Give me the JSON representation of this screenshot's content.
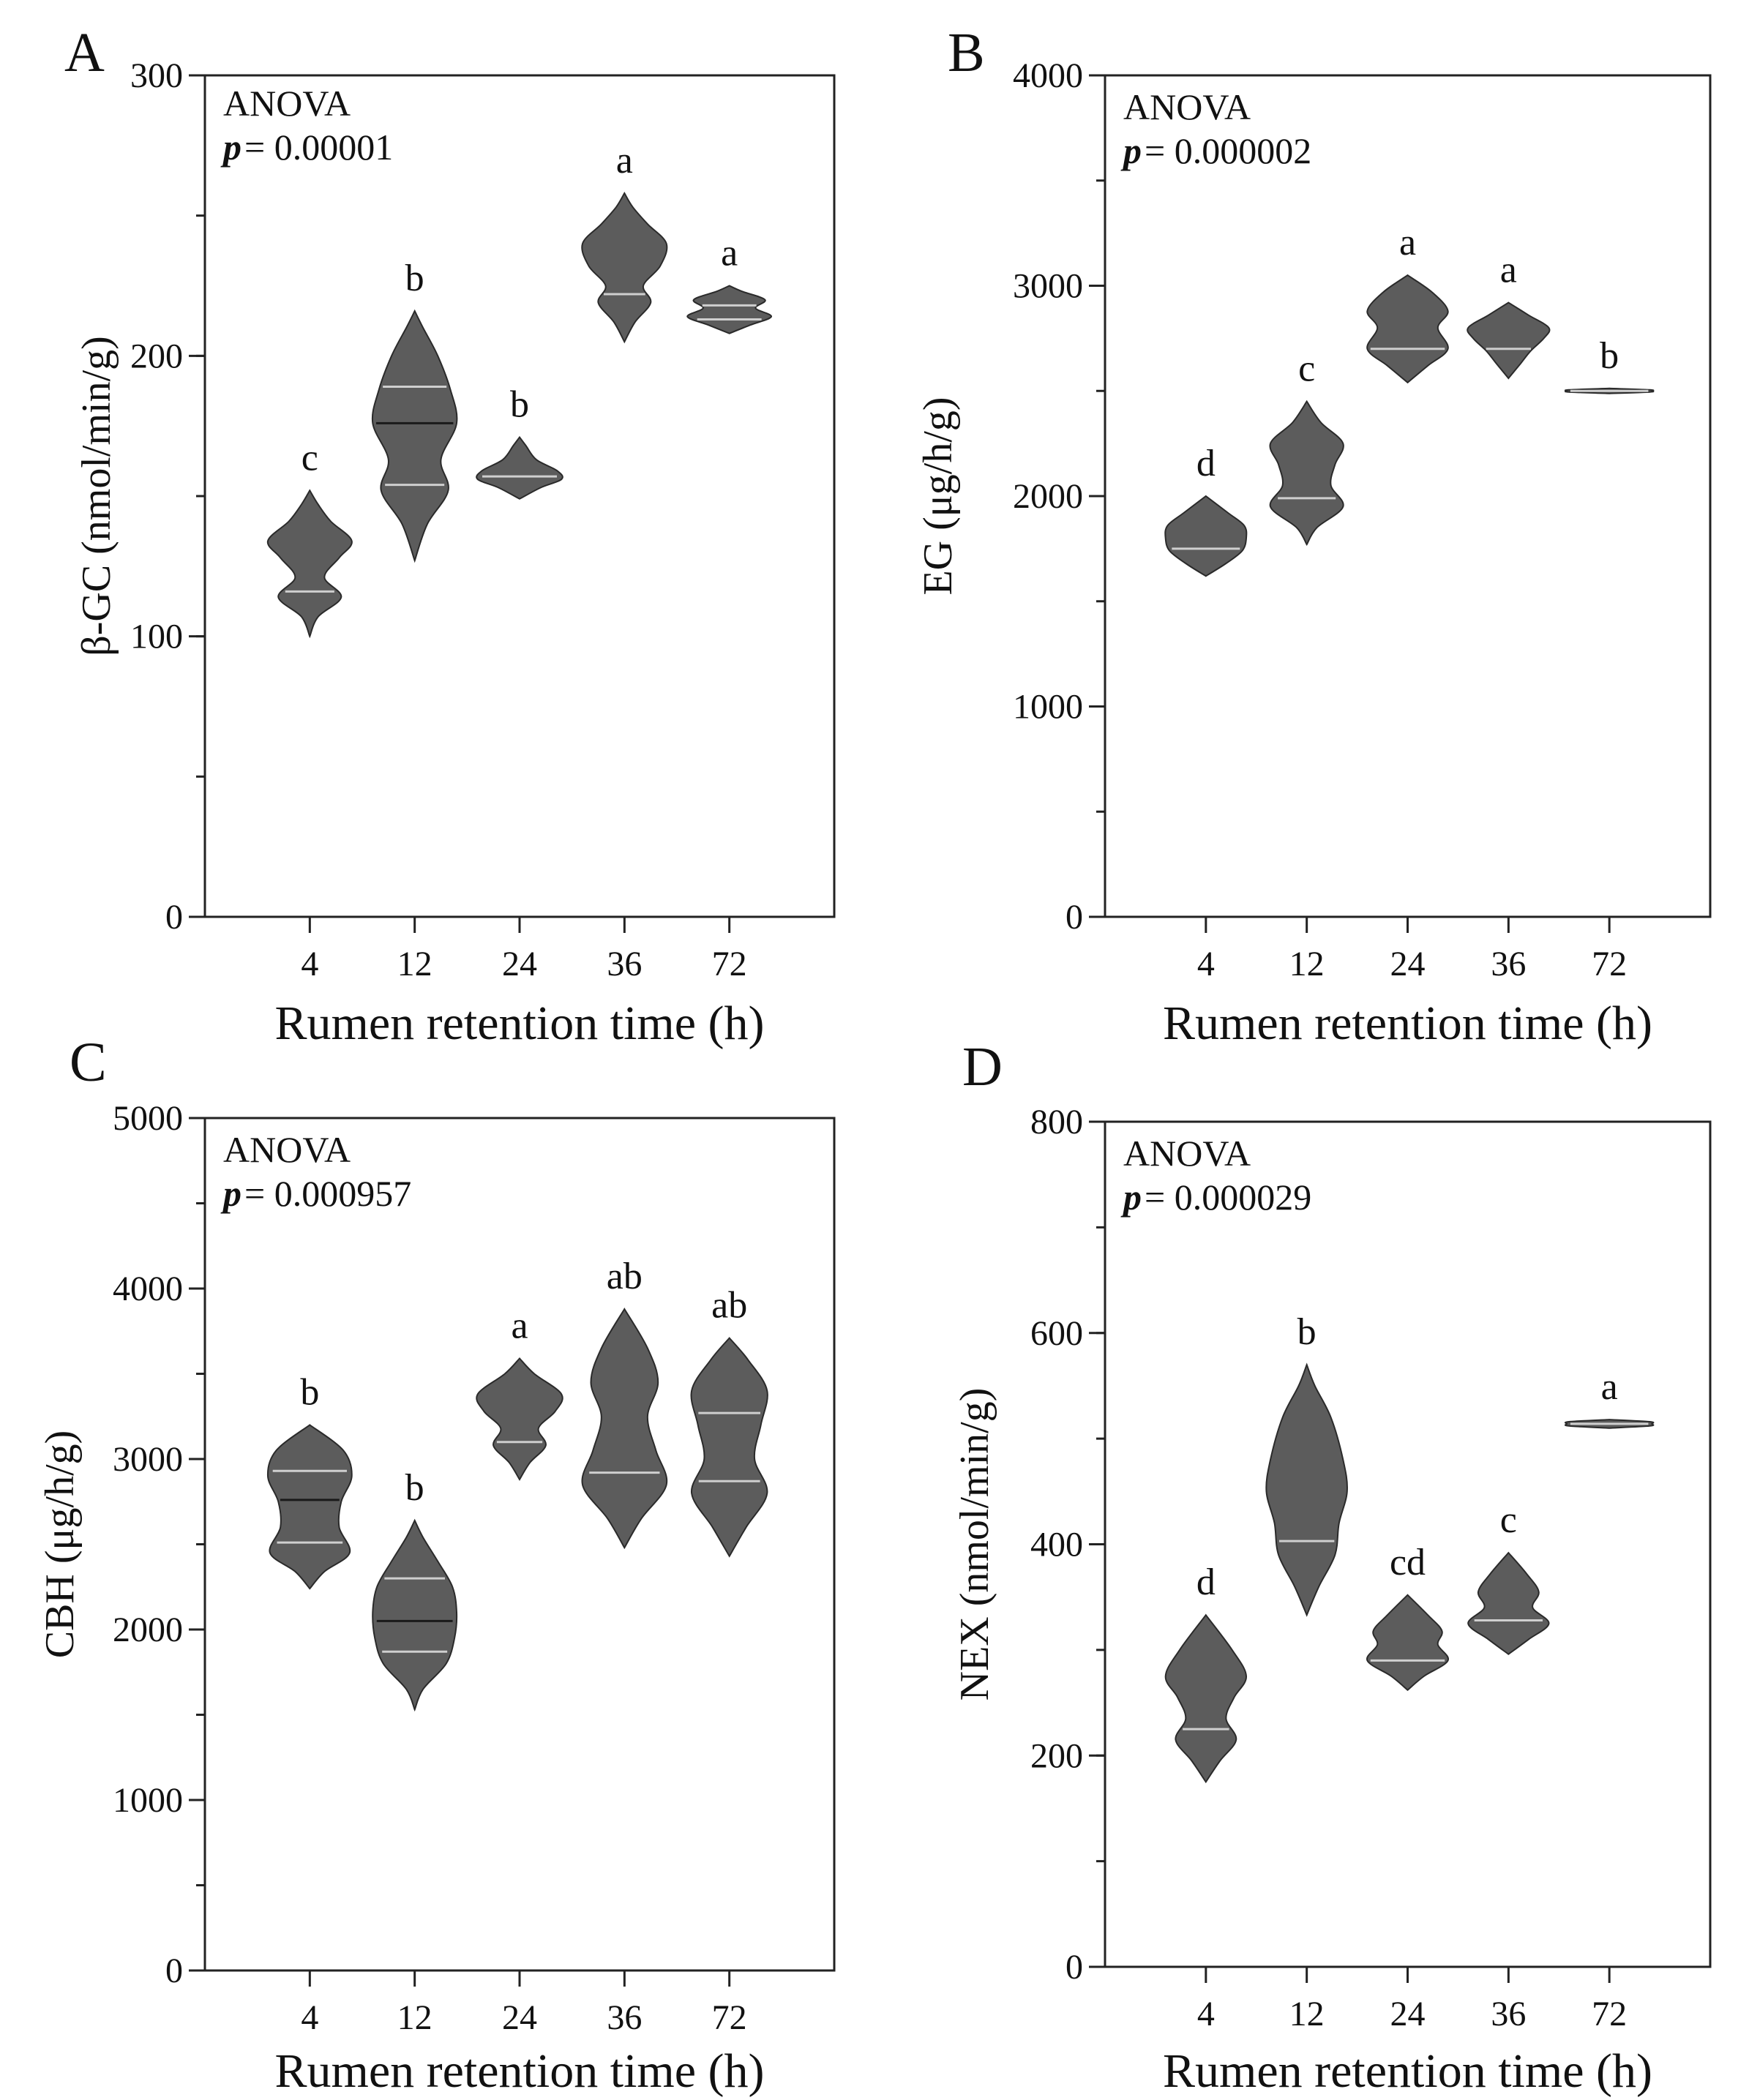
{
  "chart_data": [
    {
      "panel": "A",
      "type": "violin",
      "test": "ANOVA",
      "p_symbol": "p",
      "p_value": "= 0.00001",
      "categories": [
        "4",
        "12",
        "24",
        "36",
        "72"
      ],
      "xlabel": "Rumen retention time (h)",
      "ylabel": "β-GC (nmol/min/g)",
      "ylim": [
        0,
        300
      ],
      "yticks": [
        "0",
        "100",
        "200",
        "300"
      ],
      "yminor_step": 50,
      "fill_color": "#5c5c5c",
      "groups": [
        {
          "x": "4",
          "min": 100,
          "max": 152,
          "shape": [
            [
              100,
              0
            ],
            [
              107,
              0.08
            ],
            [
              114,
              0.3
            ],
            [
              121,
              0.14
            ],
            [
              128,
              0.28
            ],
            [
              134,
              0.4
            ],
            [
              141,
              0.2
            ],
            [
              147,
              0.08
            ],
            [
              152,
              0
            ]
          ],
          "lines": [
            {
              "y": 116,
              "color": "#cfcfcf"
            }
          ],
          "sig": "c"
        },
        {
          "x": "12",
          "min": 127,
          "max": 216,
          "shape": [
            [
              127,
              0
            ],
            [
              140,
              0.12
            ],
            [
              152,
              0.32
            ],
            [
              163,
              0.25
            ],
            [
              176,
              0.4
            ],
            [
              188,
              0.34
            ],
            [
              200,
              0.22
            ],
            [
              210,
              0.08
            ],
            [
              216,
              0
            ]
          ],
          "lines": [
            {
              "y": 154,
              "color": "#cfcfcf"
            },
            {
              "y": 176,
              "color": "#1a1a1a"
            },
            {
              "y": 189,
              "color": "#cfcfcf"
            }
          ],
          "sig": "b"
        },
        {
          "x": "24",
          "min": 149,
          "max": 171,
          "shape": [
            [
              149,
              0
            ],
            [
              153,
              0.2
            ],
            [
              156,
              0.4
            ],
            [
              159,
              0.36
            ],
            [
              163,
              0.16
            ],
            [
              168,
              0.06
            ],
            [
              171,
              0
            ]
          ],
          "lines": [
            {
              "y": 157,
              "color": "#cfcfcf"
            }
          ],
          "sig": "b"
        },
        {
          "x": "36",
          "min": 205,
          "max": 258,
          "shape": [
            [
              205,
              0
            ],
            [
              212,
              0.1
            ],
            [
              219,
              0.25
            ],
            [
              225,
              0.18
            ],
            [
              232,
              0.34
            ],
            [
              240,
              0.4
            ],
            [
              247,
              0.22
            ],
            [
              253,
              0.08
            ],
            [
              258,
              0
            ]
          ],
          "lines": [
            {
              "y": 222,
              "color": "#cfcfcf"
            }
          ],
          "sig": "a"
        },
        {
          "x": "72",
          "min": 208,
          "max": 225,
          "shape": [
            [
              208,
              0
            ],
            [
              211,
              0.2
            ],
            [
              214,
              0.4
            ],
            [
              217,
              0.25
            ],
            [
              220,
              0.34
            ],
            [
              223,
              0.12
            ],
            [
              225,
              0
            ]
          ],
          "lines": [
            {
              "y": 213,
              "color": "#cfcfcf"
            },
            {
              "y": 218,
              "color": "#cfcfcf"
            }
          ],
          "sig": "a"
        }
      ]
    },
    {
      "panel": "B",
      "type": "violin",
      "test": "ANOVA",
      "p_symbol": "p",
      "p_value": "= 0.000002",
      "categories": [
        "4",
        "12",
        "24",
        "36",
        "72"
      ],
      "xlabel": "Rumen retention time (h)",
      "ylabel": "EG (μg/h/g)",
      "ylim": [
        0,
        4000
      ],
      "yticks": [
        "0",
        "1000",
        "2000",
        "3000",
        "4000"
      ],
      "yminor_step": 500,
      "fill_color": "#5c5c5c",
      "groups": [
        {
          "x": "4",
          "min": 1620,
          "max": 2000,
          "shape": [
            [
              1620,
              0
            ],
            [
              1680,
              0.2
            ],
            [
              1740,
              0.36
            ],
            [
              1800,
              0.4
            ],
            [
              1860,
              0.38
            ],
            [
              1920,
              0.22
            ],
            [
              2000,
              0
            ]
          ],
          "lines": [
            {
              "y": 1750,
              "color": "#cfcfcf"
            }
          ],
          "sig": "d"
        },
        {
          "x": "12",
          "min": 1770,
          "max": 2450,
          "shape": [
            [
              1770,
              0
            ],
            [
              1850,
              0.1
            ],
            [
              1950,
              0.36
            ],
            [
              2050,
              0.24
            ],
            [
              2150,
              0.28
            ],
            [
              2250,
              0.36
            ],
            [
              2350,
              0.14
            ],
            [
              2450,
              0
            ]
          ],
          "lines": [
            {
              "y": 1990,
              "color": "#cfcfcf"
            }
          ],
          "sig": "c"
        },
        {
          "x": "24",
          "min": 2540,
          "max": 3050,
          "shape": [
            [
              2540,
              0
            ],
            [
              2620,
              0.2
            ],
            [
              2700,
              0.4
            ],
            [
              2800,
              0.3
            ],
            [
              2880,
              0.4
            ],
            [
              2970,
              0.24
            ],
            [
              3050,
              0
            ]
          ],
          "lines": [
            {
              "y": 2700,
              "color": "#cfcfcf"
            }
          ],
          "sig": "a"
        },
        {
          "x": "36",
          "min": 2560,
          "max": 2920,
          "shape": [
            [
              2560,
              0
            ],
            [
              2630,
              0.12
            ],
            [
              2690,
              0.22
            ],
            [
              2750,
              0.35
            ],
            [
              2800,
              0.4
            ],
            [
              2860,
              0.2
            ],
            [
              2920,
              0
            ]
          ],
          "lines": [
            {
              "y": 2700,
              "color": "#cfcfcf"
            }
          ],
          "sig": "a"
        },
        {
          "x": "72",
          "min": 2488,
          "max": 2512,
          "shape": [
            [
              2488,
              0
            ],
            [
              2495,
              0.4
            ],
            [
              2500,
              0.42
            ],
            [
              2505,
              0.4
            ],
            [
              2512,
              0
            ]
          ],
          "lines": [
            {
              "y": 2500,
              "color": "#cfcfcf"
            }
          ],
          "sig": "b"
        }
      ]
    },
    {
      "panel": "C",
      "type": "violin",
      "test": "ANOVA",
      "p_symbol": "p",
      "p_value": "= 0.000957",
      "categories": [
        "4",
        "12",
        "24",
        "36",
        "72"
      ],
      "xlabel": "Rumen retention time (h)",
      "ylabel": "CBH (μg/h/g)",
      "ylim": [
        0,
        5000
      ],
      "yticks": [
        "0",
        "1000",
        "2000",
        "3000",
        "4000",
        "5000"
      ],
      "yminor_step": 500,
      "fill_color": "#5c5c5c",
      "groups": [
        {
          "x": "4",
          "min": 2240,
          "max": 3200,
          "shape": [
            [
              2240,
              0
            ],
            [
              2340,
              0.14
            ],
            [
              2450,
              0.38
            ],
            [
              2600,
              0.28
            ],
            [
              2750,
              0.3
            ],
            [
              2900,
              0.4
            ],
            [
              3050,
              0.32
            ],
            [
              3200,
              0
            ]
          ],
          "lines": [
            {
              "y": 2510,
              "color": "#cfcfcf"
            },
            {
              "y": 2760,
              "color": "#1a1a1a"
            },
            {
              "y": 2930,
              "color": "#cfcfcf"
            }
          ],
          "sig": "b"
        },
        {
          "x": "12",
          "min": 1530,
          "max": 2640,
          "shape": [
            [
              1530,
              0
            ],
            [
              1650,
              0.08
            ],
            [
              1800,
              0.3
            ],
            [
              1950,
              0.38
            ],
            [
              2100,
              0.4
            ],
            [
              2250,
              0.36
            ],
            [
              2400,
              0.22
            ],
            [
              2540,
              0.08
            ],
            [
              2640,
              0
            ]
          ],
          "lines": [
            {
              "y": 1870,
              "color": "#cfcfcf"
            },
            {
              "y": 2050,
              "color": "#1a1a1a"
            },
            {
              "y": 2300,
              "color": "#cfcfcf"
            }
          ],
          "sig": "b"
        },
        {
          "x": "24",
          "min": 2880,
          "max": 3590,
          "shape": [
            [
              2880,
              0
            ],
            [
              2980,
              0.1
            ],
            [
              3080,
              0.25
            ],
            [
              3180,
              0.18
            ],
            [
              3280,
              0.34
            ],
            [
              3380,
              0.4
            ],
            [
              3500,
              0.14
            ],
            [
              3590,
              0
            ]
          ],
          "lines": [
            {
              "y": 3100,
              "color": "#cfcfcf"
            }
          ],
          "sig": "a"
        },
        {
          "x": "36",
          "min": 2480,
          "max": 3880,
          "shape": [
            [
              2480,
              0
            ],
            [
              2650,
              0.16
            ],
            [
              2850,
              0.4
            ],
            [
              3050,
              0.3
            ],
            [
              3250,
              0.22
            ],
            [
              3450,
              0.32
            ],
            [
              3650,
              0.22
            ],
            [
              3880,
              0
            ]
          ],
          "lines": [
            {
              "y": 2920,
              "color": "#cfcfcf"
            }
          ],
          "sig": "ab"
        },
        {
          "x": "72",
          "min": 2430,
          "max": 3710,
          "shape": [
            [
              2430,
              0
            ],
            [
              2600,
              0.16
            ],
            [
              2800,
              0.36
            ],
            [
              3000,
              0.24
            ],
            [
              3200,
              0.3
            ],
            [
              3400,
              0.36
            ],
            [
              3580,
              0.18
            ],
            [
              3710,
              0
            ]
          ],
          "lines": [
            {
              "y": 2870,
              "color": "#cfcfcf"
            },
            {
              "y": 3270,
              "color": "#cfcfcf"
            }
          ],
          "sig": "ab"
        }
      ]
    },
    {
      "panel": "D",
      "type": "violin",
      "test": "ANOVA",
      "p_symbol": "p",
      "p_value": "= 0.000029",
      "categories": [
        "4",
        "12",
        "24",
        "36",
        "72"
      ],
      "xlabel": "Rumen retention time (h)",
      "ylabel": "NEX (nmol/min/g)",
      "ylim": [
        0,
        800
      ],
      "yticks": [
        "0",
        "200",
        "400",
        "600",
        "800"
      ],
      "yminor_step": 100,
      "fill_color": "#5c5c5c",
      "groups": [
        {
          "x": "4",
          "min": 175,
          "max": 333,
          "shape": [
            [
              175,
              0
            ],
            [
              195,
              0.14
            ],
            [
              215,
              0.3
            ],
            [
              235,
              0.2
            ],
            [
              255,
              0.28
            ],
            [
              275,
              0.4
            ],
            [
              300,
              0.26
            ],
            [
              333,
              0
            ]
          ],
          "lines": [
            {
              "y": 225,
              "color": "#cfcfcf"
            }
          ],
          "sig": "d"
        },
        {
          "x": "12",
          "min": 333,
          "max": 570,
          "shape": [
            [
              333,
              0
            ],
            [
              360,
              0.12
            ],
            [
              390,
              0.28
            ],
            [
              420,
              0.32
            ],
            [
              450,
              0.4
            ],
            [
              480,
              0.36
            ],
            [
              520,
              0.24
            ],
            [
              550,
              0.08
            ],
            [
              570,
              0
            ]
          ],
          "lines": [
            {
              "y": 403,
              "color": "#cfcfcf"
            }
          ],
          "sig": "b"
        },
        {
          "x": "24",
          "min": 262,
          "max": 352,
          "shape": [
            [
              262,
              0
            ],
            [
              275,
              0.16
            ],
            [
              290,
              0.4
            ],
            [
              305,
              0.3
            ],
            [
              318,
              0.34
            ],
            [
              333,
              0.2
            ],
            [
              352,
              0
            ]
          ],
          "lines": [
            {
              "y": 290,
              "color": "#cfcfcf"
            }
          ],
          "sig": "cd"
        },
        {
          "x": "36",
          "min": 296,
          "max": 392,
          "shape": [
            [
              296,
              0
            ],
            [
              310,
              0.2
            ],
            [
              325,
              0.4
            ],
            [
              340,
              0.24
            ],
            [
              355,
              0.3
            ],
            [
              372,
              0.18
            ],
            [
              392,
              0
            ]
          ],
          "lines": [
            {
              "y": 328,
              "color": "#cfcfcf"
            }
          ],
          "sig": "c"
        },
        {
          "x": "72",
          "min": 510,
          "max": 518,
          "shape": [
            [
              510,
              0
            ],
            [
              512,
              0.4
            ],
            [
              514,
              0.42
            ],
            [
              516,
              0.4
            ],
            [
              518,
              0
            ]
          ],
          "lines": [
            {
              "y": 514,
              "color": "#cfcfcf"
            }
          ],
          "sig": "a"
        }
      ]
    }
  ]
}
